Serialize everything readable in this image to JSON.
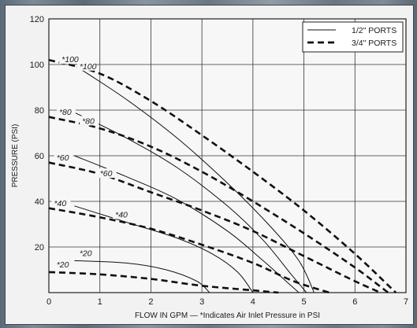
{
  "chart_data": {
    "type": "line",
    "xlabel": "FLOW IN GPM — *Indicates Air Inlet Pressure in PSI",
    "ylabel": "PRESSURE (PSI)",
    "xlim": [
      0,
      7
    ],
    "ylim": [
      0,
      120
    ],
    "x_ticks": [
      "0",
      "1",
      "2",
      "3",
      "4",
      "5",
      "6",
      "7"
    ],
    "y_ticks": [
      "20",
      "40",
      "60",
      "80",
      "100",
      "120"
    ],
    "grid": true,
    "legend": {
      "position": "top-right",
      "entries": [
        {
          "label": "1/2\" PORTS",
          "style": "solid"
        },
        {
          "label": "3/4\" PORTS",
          "style": "dashed"
        }
      ]
    },
    "series": [
      {
        "name": "*100",
        "port": "1/2\"",
        "label_at": [
          0.6,
          98
        ],
        "points": [
          [
            0.55,
            99
          ],
          [
            1.5,
            85
          ],
          [
            2.5,
            68
          ],
          [
            3.5,
            48
          ],
          [
            4.3,
            30
          ],
          [
            4.9,
            14
          ],
          [
            5.2,
            0
          ]
        ]
      },
      {
        "name": "*80",
        "port": "1/2\"",
        "label_at": [
          0.65,
          74
        ],
        "points": [
          [
            0.5,
            79
          ],
          [
            1.5,
            68
          ],
          [
            2.5,
            55
          ],
          [
            3.5,
            38
          ],
          [
            4.2,
            23
          ],
          [
            4.75,
            8
          ],
          [
            5.05,
            0
          ]
        ]
      },
      {
        "name": "*60",
        "port": "1/2\"",
        "label_at": [
          1.0,
          51
        ],
        "points": [
          [
            0.5,
            60
          ],
          [
            1.5,
            51
          ],
          [
            2.5,
            41
          ],
          [
            3.5,
            27
          ],
          [
            4.2,
            14
          ],
          [
            4.65,
            5
          ],
          [
            4.9,
            0
          ]
        ]
      },
      {
        "name": "*40",
        "port": "1/2\"",
        "label_at": [
          1.3,
          33
        ],
        "points": [
          [
            0.5,
            38
          ],
          [
            1.5,
            31
          ],
          [
            2.5,
            24
          ],
          [
            3.2,
            17
          ],
          [
            3.7,
            9
          ],
          [
            4.0,
            0
          ]
        ]
      },
      {
        "name": "*20",
        "port": "1/2\"",
        "label_at": [
          0.6,
          16
        ],
        "points": [
          [
            0.5,
            14
          ],
          [
            1.5,
            13
          ],
          [
            2.3,
            10
          ],
          [
            2.9,
            5
          ],
          [
            3.15,
            0
          ]
        ]
      },
      {
        "name": "*100",
        "port": "3/4\"",
        "label_at": [
          0.25,
          101
        ],
        "points": [
          [
            0,
            102
          ],
          [
            1.0,
            96
          ],
          [
            2.0,
            84
          ],
          [
            3.0,
            69
          ],
          [
            4.0,
            53
          ],
          [
            5.0,
            36
          ],
          [
            6.0,
            17
          ],
          [
            6.8,
            0
          ]
        ]
      },
      {
        "name": "*80",
        "port": "3/4\"",
        "label_at": [
          0.2,
          78
        ],
        "points": [
          [
            0,
            77
          ],
          [
            1.0,
            72
          ],
          [
            2.0,
            64
          ],
          [
            3.0,
            53
          ],
          [
            4.0,
            40
          ],
          [
            5.0,
            26
          ],
          [
            6.0,
            11
          ],
          [
            6.65,
            0
          ]
        ]
      },
      {
        "name": "*60",
        "port": "3/4\"",
        "label_at": [
          0.15,
          58
        ],
        "points": [
          [
            0,
            57
          ],
          [
            1.0,
            52
          ],
          [
            2.0,
            44
          ],
          [
            3.0,
            36
          ],
          [
            4.0,
            27
          ],
          [
            5.0,
            16
          ],
          [
            6.0,
            5
          ],
          [
            6.5,
            0
          ]
        ]
      },
      {
        "name": "*40",
        "port": "3/4\"",
        "label_at": [
          0.1,
          38
        ],
        "points": [
          [
            0,
            37
          ],
          [
            1.0,
            33
          ],
          [
            2.0,
            28
          ],
          [
            3.0,
            21
          ],
          [
            4.0,
            13
          ],
          [
            4.8,
            5
          ],
          [
            5.5,
            0
          ]
        ]
      },
      {
        "name": "*20",
        "port": "3/4\"",
        "label_at": [
          0.15,
          11
        ],
        "points": [
          [
            0,
            9
          ],
          [
            1.0,
            8
          ],
          [
            2.0,
            6
          ],
          [
            3.0,
            3
          ],
          [
            4.0,
            1
          ],
          [
            4.5,
            0
          ]
        ]
      }
    ]
  }
}
